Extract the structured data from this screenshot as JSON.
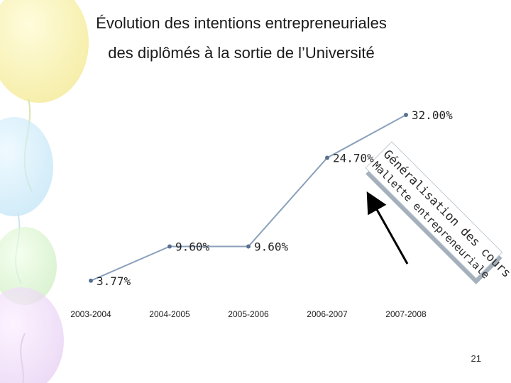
{
  "slide": {
    "title_line1": "Évolution des intentions entrepreneuriales",
    "title_line2": "des diplômés à la sortie de l’Université",
    "page_number": "21"
  },
  "chart_data": {
    "type": "line",
    "categories": [
      "2003-2004",
      "2004-2005",
      "2005-2006",
      "2006-2007",
      "2007-2008"
    ],
    "points": [
      {
        "x": 1.0,
        "value": 3.77,
        "label": "3.77%"
      },
      {
        "x": 2.0,
        "value": 9.6,
        "label": "9.60%"
      },
      {
        "x": 3.0,
        "value": 9.6,
        "label": "9.60%"
      },
      {
        "x": 4.0,
        "value": 24.7,
        "label": "24.70%"
      },
      {
        "x": 5.0,
        "value": 32.0,
        "label": "32.00%"
      }
    ],
    "ylim": [
      0,
      36
    ],
    "title": "",
    "xlabel": "",
    "ylabel": "",
    "grid": false,
    "annotation": {
      "line1": "Généralisation des cours",
      "line2": "Mallette entrepreneuriale"
    },
    "colors": {
      "line": "#8aa0bb",
      "marker": "#5a7090",
      "box": "#9aa7b5"
    }
  }
}
